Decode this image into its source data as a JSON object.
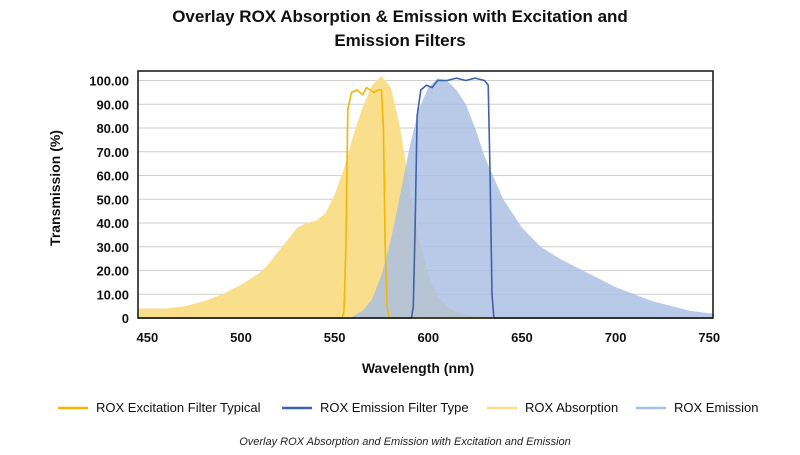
{
  "chart_data": {
    "type": "area",
    "title": "Overlay ROX Absorption & Emission with Excitation and Emission Filters",
    "title_lines": [
      "Overlay ROX Absorption & Emission with Excitation and",
      "Emission Filters"
    ],
    "xlabel": "Wavelength (nm)",
    "ylabel": "Transmission (%)",
    "xlim": [
      445,
      752
    ],
    "ylim": [
      0,
      104
    ],
    "x_ticks": [
      450,
      500,
      550,
      600,
      650,
      700,
      750
    ],
    "x_tick_labels": [
      "450",
      "500",
      "550",
      "600",
      "650",
      "700",
      "750"
    ],
    "y_ticks": [
      0,
      10,
      20,
      30,
      40,
      50,
      60,
      70,
      80,
      90,
      100
    ],
    "y_tick_labels": [
      "0",
      "10.00",
      "20.00",
      "30.00",
      "40.00",
      "50.00",
      "60.00",
      "70.00",
      "80.00",
      "90.00",
      "100.00"
    ],
    "grid": "horizontal",
    "legend_position": "bottom",
    "caption": "Overlay ROX Absorption and Emission with Excitation and Emission",
    "series": [
      {
        "name": "ROX Excitation Filter Typical",
        "kind": "line",
        "color": "#f2b705",
        "x": [
          445,
          554,
          555,
          556,
          557,
          559,
          562,
          565,
          567,
          569,
          571,
          573,
          575,
          576,
          577,
          578,
          579,
          752
        ],
        "y": [
          0,
          0,
          3,
          30,
          88,
          95,
          96,
          94,
          97,
          96,
          95,
          96,
          96,
          80,
          30,
          5,
          0,
          0
        ]
      },
      {
        "name": "ROX Emission Filter Type",
        "kind": "line",
        "color": "#3d63a6",
        "x": [
          445,
          591,
          592,
          593,
          594,
          596,
          599,
          602,
          605,
          610,
          615,
          620,
          625,
          630,
          632,
          633,
          634,
          635,
          752
        ],
        "y": [
          0,
          0,
          5,
          40,
          85,
          96,
          98,
          97,
          100,
          100,
          101,
          100,
          101,
          100,
          98,
          60,
          10,
          0,
          0
        ]
      },
      {
        "name": "ROX Absorption",
        "kind": "area",
        "color": "#f9df8c",
        "x": [
          445,
          460,
          470,
          480,
          490,
          500,
          510,
          515,
          520,
          525,
          530,
          535,
          540,
          545,
          550,
          555,
          560,
          565,
          570,
          575,
          580,
          585,
          590,
          595,
          600,
          605,
          610,
          615,
          620,
          630,
          640,
          650
        ],
        "y": [
          4,
          4,
          5,
          7,
          10,
          14,
          19,
          23,
          28,
          33,
          38,
          40,
          41,
          44,
          52,
          63,
          77,
          89,
          98,
          102,
          97,
          80,
          55,
          33,
          18,
          9,
          5,
          2.5,
          1.5,
          0.5,
          0.2,
          0
        ]
      },
      {
        "name": "ROX Emission",
        "kind": "area",
        "color": "#a8bee3",
        "x": [
          560,
          565,
          570,
          575,
          580,
          585,
          590,
          595,
          600,
          605,
          610,
          615,
          620,
          625,
          630,
          640,
          650,
          660,
          670,
          680,
          690,
          700,
          710,
          720,
          730,
          740,
          750,
          752
        ],
        "y": [
          1,
          3,
          8,
          18,
          33,
          52,
          72,
          88,
          97,
          101,
          100,
          96,
          90,
          80,
          68,
          50,
          38,
          30,
          25,
          21,
          17,
          13,
          10,
          7,
          5,
          3,
          2,
          2
        ]
      }
    ]
  }
}
